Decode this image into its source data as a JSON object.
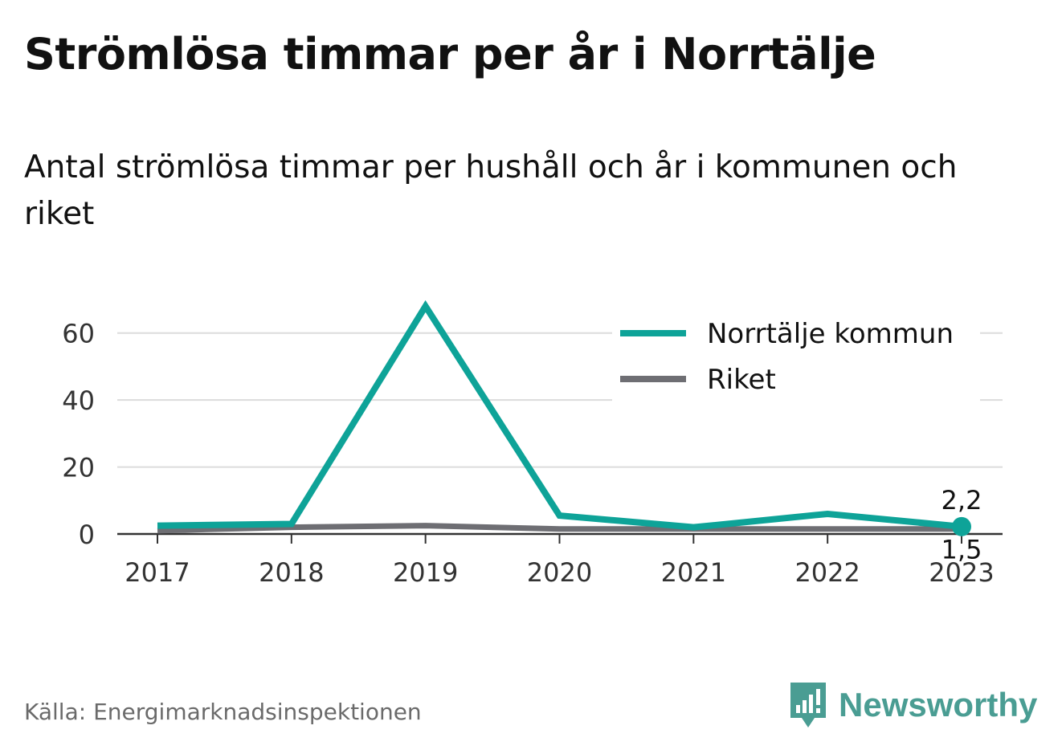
{
  "header": {
    "title": "Strömlösa timmar per år i Norrtälje",
    "subtitle": "Antal strömlösa timmar per hushåll och år i kommunen och riket"
  },
  "footer": {
    "source": "Källa: Energimarknadsinspektionen",
    "brand": "Newsworthy",
    "brand_color": "#4a9d93",
    "brand_icon": "bar-chart-icon"
  },
  "chart_data": {
    "type": "line",
    "x": [
      "2017",
      "2018",
      "2019",
      "2020",
      "2021",
      "2022",
      "2023"
    ],
    "ylim": [
      0,
      70
    ],
    "yticks": [
      "0",
      "20",
      "40",
      "60"
    ],
    "grid": true,
    "legend_position": "top-right",
    "series": [
      {
        "name": "Norrtälje kommun",
        "color": "#0ea398",
        "values": [
          2.5,
          3,
          68,
          5.5,
          2,
          6,
          2.2
        ],
        "end_label": "2,2"
      },
      {
        "name": "Riket",
        "color": "#6e6e73",
        "values": [
          1,
          2,
          2.5,
          1.5,
          1.5,
          1.5,
          1.5
        ],
        "end_label": "1,5"
      }
    ]
  }
}
